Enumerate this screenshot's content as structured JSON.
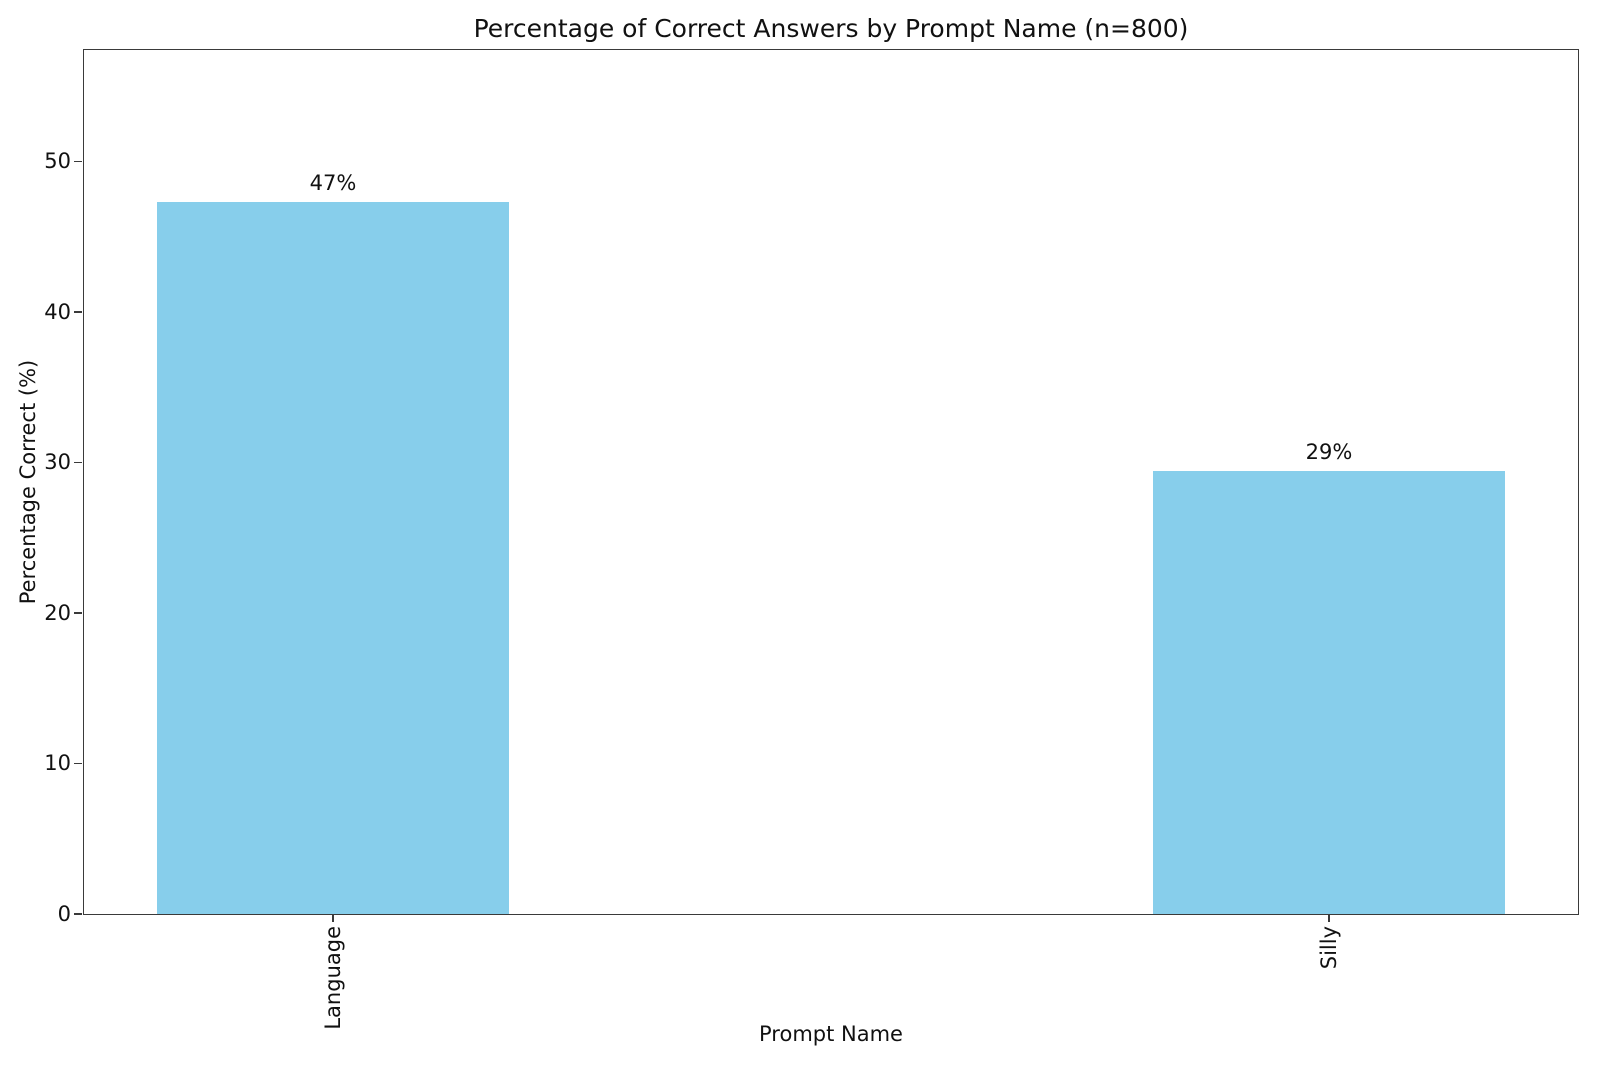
{
  "chart_data": {
    "type": "bar",
    "title": "Percentage of Correct Answers by Prompt Name (n=800)",
    "xlabel": "Prompt Name",
    "ylabel": "Percentage Correct (%)",
    "categories": [
      "Language",
      "Silly"
    ],
    "values": [
      47.3,
      29.4
    ],
    "bar_labels": [
      "47%",
      "29%"
    ],
    "bar_color": "#87CEEB",
    "yticks": [
      0,
      10,
      20,
      30,
      40,
      50
    ],
    "ylim": [
      0,
      57.4
    ],
    "xlim": [
      -0.25,
      1.25
    ],
    "bar_width": 0.354,
    "grid": false,
    "legend": "none"
  }
}
